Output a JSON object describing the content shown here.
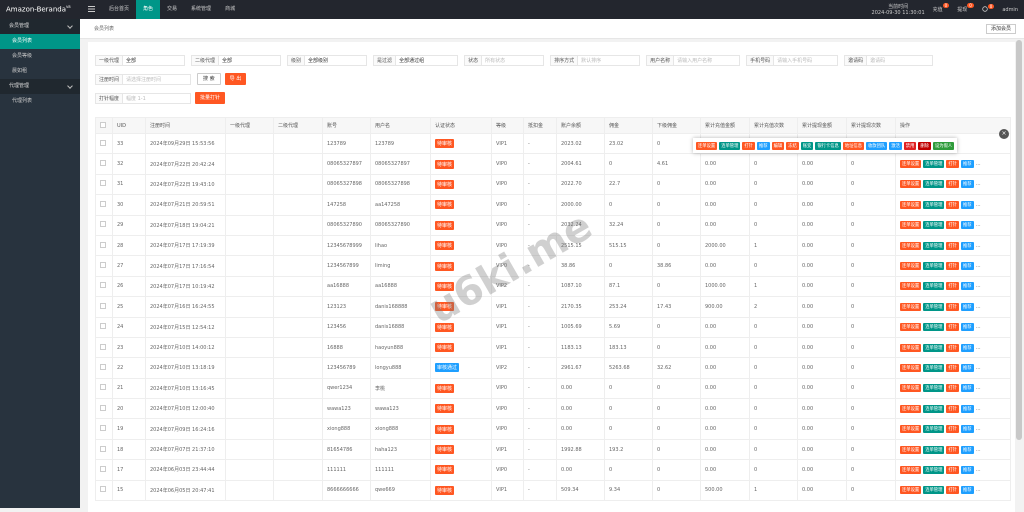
{
  "topbar": {
    "brand": "Amazon-Beranda",
    "version": "V8",
    "nav": [
      "后台首页",
      "角色",
      "交易",
      "系统管理",
      "商城"
    ],
    "time_label": "当前时间",
    "time": "2024-09-30 11:30:01",
    "recharge": "充值",
    "recharge_badge": "0",
    "withdraw": "提现",
    "withdraw_badge": "0",
    "refresh_badge": "0",
    "user": "admin"
  },
  "sidebar": [
    {
      "title": "会员管理",
      "items": [
        "会员列表",
        "会员等级",
        "晨如租"
      ]
    },
    {
      "title": "代理管理",
      "items": [
        "代理列表"
      ]
    }
  ],
  "breadcrumb": "会员列表",
  "add_button": "添加会员",
  "filters": [
    [
      {
        "label": "一级代理",
        "value": "全部"
      },
      {
        "label": "二级代理",
        "value": "全部"
      },
      {
        "label": "级别",
        "value": "全部级别"
      },
      {
        "label": "是过滤",
        "value": "全部通过组"
      },
      {
        "label": "状态",
        "placeholder": "所有状态"
      },
      {
        "label": "排序方式",
        "placeholder": "默认排序"
      },
      {
        "label": "用户名称",
        "placeholder": "请输入用户名称"
      },
      {
        "label": "手机号码",
        "placeholder": "请输入手机号码"
      },
      {
        "label": "邀请码",
        "placeholder": "邀请码"
      }
    ],
    [
      {
        "label": "注册时间",
        "placeholder": "请选择注册时间"
      }
    ],
    [
      {
        "label": "打针幅度",
        "placeholder": "幅度 1-1"
      }
    ]
  ],
  "search_button": "搜 索",
  "export_button": "导 出",
  "batch_button": "批量打针",
  "watermark": "u6ki.me",
  "table": {
    "headers": [
      "UID",
      "注册时间",
      "一级代理",
      "二级代理",
      "账号",
      "用户名",
      "认证状态",
      "等级",
      "抵扣金",
      "账户余额",
      "佣金",
      "下级佣金",
      "累计充值金额",
      "累计充值次数",
      "累计提现金额",
      "累计提现次数",
      "操作"
    ],
    "rows": [
      {
        "cells": [
          "33",
          "2024年09月29日 15:53:56",
          null,
          null,
          "123789",
          "123789",
          "待审核",
          "VIP1",
          "-",
          "2023.02",
          "23.02",
          "0",
          "0.00",
          "0",
          "0.00",
          "0"
        ],
        "status_color": "#ff5722"
      },
      {
        "cells": [
          "32",
          "2024年07月22日 20:42:24",
          null,
          null,
          "08065327897",
          "08065327897",
          "待审核",
          "VIP0",
          "-",
          "2004.61",
          "0",
          "4.61",
          "0.00",
          "0",
          "0.00",
          "0"
        ],
        "status_color": "#ff5722"
      },
      {
        "cells": [
          "31",
          "2024年07月22日 19:43:10",
          null,
          null,
          "08065327898",
          "08065327898",
          "待审核",
          "VIP0",
          "-",
          "2022.70",
          "22.7",
          "0",
          "0.00",
          "0",
          "0.00",
          "0"
        ],
        "status_color": "#ff5722"
      },
      {
        "cells": [
          "30",
          "2024年07月21日 20:59:51",
          null,
          null,
          "147258",
          "aa147258",
          "待审核",
          "VIP0",
          "-",
          "2000.00",
          "0",
          "0",
          "0.00",
          "0",
          "0.00",
          "0"
        ],
        "status_color": "#ff5722"
      },
      {
        "cells": [
          "29",
          "2024年07月18日 19:04:21",
          null,
          null,
          "08065327890",
          "08065327890",
          "待审核",
          "VIP0",
          "-",
          "2032.24",
          "32.24",
          "0",
          "0.00",
          "0",
          "0.00",
          "0"
        ],
        "status_color": "#ff5722"
      },
      {
        "cells": [
          "28",
          "2024年07月17日 17:19:39",
          null,
          null,
          "12345678999",
          "lihao",
          "待审核",
          "VIP0",
          "-",
          "2515.15",
          "515.15",
          "0",
          "2000.00",
          "1",
          "0.00",
          "0"
        ],
        "status_color": "#ff5722"
      },
      {
        "cells": [
          "27",
          "2024年07月17日 17:16:54",
          null,
          null,
          "1234567899",
          "liming",
          "待审核",
          "VIP0",
          "-",
          "38.86",
          "0",
          "38.86",
          "0.00",
          "0",
          "0.00",
          "0"
        ],
        "status_color": "#ff5722"
      },
      {
        "cells": [
          "26",
          "2024年07月17日 10:19:42",
          null,
          null,
          "aa16888",
          "aa16888",
          "待审核",
          "VIP2",
          "-",
          "1087.10",
          "87.1",
          "0",
          "1000.00",
          "1",
          "0.00",
          "0"
        ],
        "status_color": "#ff5722"
      },
      {
        "cells": [
          "25",
          "2024年07月16日 16:24:55",
          null,
          null,
          "123123",
          "danis168888",
          "待审核",
          "VIP1",
          "-",
          "2170.35",
          "253.24",
          "17.43",
          "900.00",
          "2",
          "0.00",
          "0"
        ],
        "status_color": "#ff5722"
      },
      {
        "cells": [
          "24",
          "2024年07月15日 12:54:12",
          null,
          null,
          "123456",
          "danis16888",
          "待审核",
          "VIP1",
          "-",
          "1005.69",
          "5.69",
          "0",
          "0.00",
          "0",
          "0.00",
          "0"
        ],
        "status_color": "#ff5722"
      },
      {
        "cells": [
          "23",
          "2024年07月10日 14:00:12",
          null,
          null,
          "16888",
          "haoyun888",
          "待审核",
          "VIP1",
          "-",
          "1183.13",
          "183.13",
          "0",
          "0.00",
          "0",
          "0.00",
          "0"
        ],
        "status_color": "#ff5722"
      },
      {
        "cells": [
          "22",
          "2024年07月10日 13:18:19",
          null,
          null,
          "123456789",
          "longyu888",
          "审核通过",
          "VIP2",
          "-",
          "2961.67",
          "5263.68",
          "32.62",
          "0.00",
          "0",
          "0.00",
          "0"
        ],
        "status_color": "#1e9fff"
      },
      {
        "cells": [
          "21",
          "2024年07月10日 13:16:45",
          null,
          null,
          "qwer1234",
          "李桃",
          "待审核",
          "VIP0",
          "-",
          "0.00",
          "0",
          "0",
          "0.00",
          "0",
          "0.00",
          "0"
        ],
        "status_color": "#ff5722"
      },
      {
        "cells": [
          "20",
          "2024年07月10日 12:00:40",
          null,
          null,
          "wawa123",
          "wawa123",
          "待审核",
          "VIP0",
          "-",
          "0.00",
          "0",
          "0",
          "0.00",
          "0",
          "0.00",
          "0"
        ],
        "status_color": "#ff5722"
      },
      {
        "cells": [
          "19",
          "2024年07月09日 16:24:16",
          null,
          null,
          "xiong888",
          "xiong888",
          "待审核",
          "VIP0",
          "-",
          "0.00",
          "0",
          "0",
          "0.00",
          "0",
          "0.00",
          "0"
        ],
        "status_color": "#ff5722"
      },
      {
        "cells": [
          "18",
          "2024年07月07日 21:37:10",
          null,
          null,
          "81654786",
          "haha123",
          "待审核",
          "VIP1",
          "-",
          "1992.88",
          "193.2",
          "0",
          "0.00",
          "0",
          "0.00",
          "0"
        ],
        "status_color": "#ff5722"
      },
      {
        "cells": [
          "17",
          "2024年06月03日 23:44:44",
          null,
          null,
          "111111",
          "111111",
          "待审核",
          "VIP0",
          "-",
          "0.00",
          "0",
          "0",
          "0.00",
          "0",
          "0.00",
          "0"
        ],
        "status_color": "#ff5722"
      },
      {
        "cells": [
          "15",
          "2024年06月05日 20:47:41",
          null,
          null,
          "8666666666",
          "qwe669",
          "待审核",
          "VIP1",
          "-",
          "509.34",
          "9.34",
          "0",
          "500.00",
          "1",
          "0.00",
          "0"
        ],
        "status_color": "#ff5722"
      }
    ],
    "actions": [
      {
        "label": "连单设置",
        "color": "#ff5722"
      },
      {
        "label": "连单管理",
        "color": "#009688"
      },
      {
        "label": "打针",
        "color": "#ff5722"
      },
      {
        "label": "推荐",
        "color": "#1e9fff"
      }
    ],
    "more": "…",
    "popup_actions": [
      {
        "label": "连单设置",
        "color": "#ff5722"
      },
      {
        "label": "连单管理",
        "color": "#009688"
      },
      {
        "label": "打针",
        "color": "#ff5722"
      },
      {
        "label": "推荐",
        "color": "#1e9fff"
      },
      {
        "label": "编辑",
        "color": "#ff5722"
      },
      {
        "label": "冻结",
        "color": "#ff5722"
      },
      {
        "label": "账变",
        "color": "#009688"
      },
      {
        "label": "银行卡信息",
        "color": "#009688"
      },
      {
        "label": "地址信息",
        "color": "#ff5722"
      },
      {
        "label": "收款团队",
        "color": "#1e9fff"
      },
      {
        "label": "激活",
        "color": "#1e9fff"
      },
      {
        "label": "禁用",
        "color": "#e02020"
      },
      {
        "label": "删除",
        "color": "#c00000"
      },
      {
        "label": "设为假人",
        "color": "#2e9b3a"
      }
    ]
  }
}
